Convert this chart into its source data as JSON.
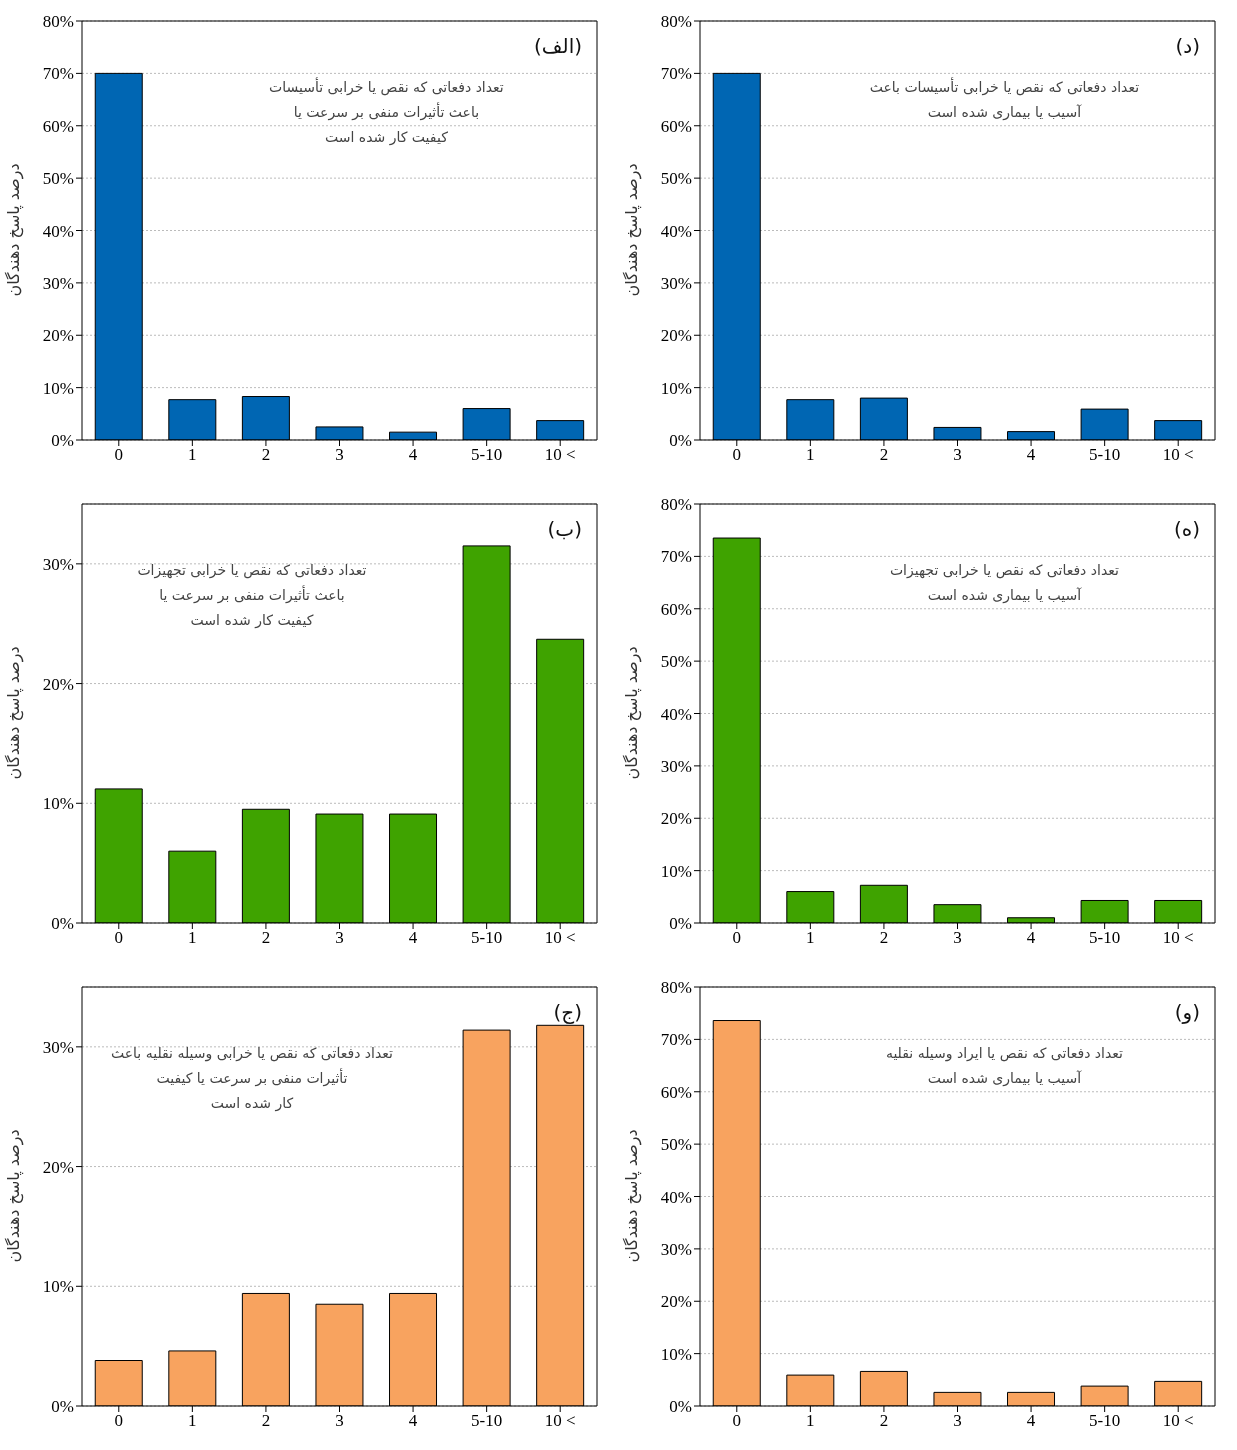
{
  "chart_data": [
    {
      "type": "bar",
      "categories": [
        "0",
        "1",
        "2",
        "3",
        "4",
        "5-10",
        "10 <"
      ],
      "values": [
        70,
        7.7,
        8.3,
        2.5,
        1.5,
        6.0,
        3.7
      ],
      "color": "#0066b3",
      "ylabel": "درصد پاسخ دهندگان",
      "ylim": [
        0,
        80
      ],
      "yticks": [
        {
          "value": 0,
          "label": "0%"
        },
        {
          "value": 10,
          "label": "10%"
        },
        {
          "value": 20,
          "label": "20%"
        },
        {
          "value": 30,
          "label": "30%"
        },
        {
          "value": 40,
          "label": "40%"
        },
        {
          "value": 50,
          "label": "50%"
        },
        {
          "value": 60,
          "label": "60%"
        },
        {
          "value": 70,
          "label": "70%"
        },
        {
          "value": 80,
          "label": "80%"
        }
      ],
      "grid": "y",
      "annotations": [
        "(الف)",
        "تعداد دفعاتی که نقص یا خرابی تأسیسات\nباعث تأثیرات منفی بر سرعت یا\nکیفیت کار شده است"
      ]
    },
    {
      "type": "bar",
      "categories": [
        "0",
        "1",
        "2",
        "3",
        "4",
        "5-10",
        "10 <"
      ],
      "values": [
        70,
        7.7,
        8.0,
        2.4,
        1.6,
        5.9,
        3.7
      ],
      "color": "#0066b3",
      "ylabel": "درصد پاسخ دهندگان",
      "ylim": [
        0,
        80
      ],
      "yticks": [
        {
          "value": 0,
          "label": "0%"
        },
        {
          "value": 10,
          "label": "10%"
        },
        {
          "value": 20,
          "label": "20%"
        },
        {
          "value": 30,
          "label": "30%"
        },
        {
          "value": 40,
          "label": "40%"
        },
        {
          "value": 50,
          "label": "50%"
        },
        {
          "value": 60,
          "label": "60%"
        },
        {
          "value": 70,
          "label": "70%"
        },
        {
          "value": 80,
          "label": "80%"
        }
      ],
      "grid": "y",
      "annotations": [
        "(د)",
        "تعداد دفعاتی که نقص یا خرابی تأسیسات باعث\nآسیب یا بیماری شده است"
      ]
    },
    {
      "type": "bar",
      "categories": [
        "0",
        "1",
        "2",
        "3",
        "4",
        "5-10",
        "10 <"
      ],
      "values": [
        11.2,
        6.0,
        9.5,
        9.1,
        9.1,
        31.5,
        23.7
      ],
      "color": "#3fa300",
      "ylabel": "درصد پاسخ دهندگان",
      "ylim": [
        0,
        35
      ],
      "yticks": [
        {
          "value": 0,
          "label": "0%"
        },
        {
          "value": 10,
          "label": "10%"
        },
        {
          "value": 20,
          "label": "20%"
        },
        {
          "value": 30,
          "label": "30%"
        }
      ],
      "grid": "y",
      "annotations": [
        "(ب)",
        "تعداد دفعاتی که نقص یا خرابی تجهیزات\nباعث تأثیرات منفی بر سرعت یا\nکیفیت کار شده است"
      ]
    },
    {
      "type": "bar",
      "categories": [
        "0",
        "1",
        "2",
        "3",
        "4",
        "5-10",
        "10 <"
      ],
      "values": [
        73.5,
        6.0,
        7.2,
        3.5,
        1.0,
        4.3,
        4.3
      ],
      "color": "#3fa300",
      "ylabel": "درصد پاسخ دهندگان",
      "ylim": [
        0,
        80
      ],
      "yticks": [
        {
          "value": 0,
          "label": "0%"
        },
        {
          "value": 10,
          "label": "10%"
        },
        {
          "value": 20,
          "label": "20%"
        },
        {
          "value": 30,
          "label": "30%"
        },
        {
          "value": 40,
          "label": "40%"
        },
        {
          "value": 50,
          "label": "50%"
        },
        {
          "value": 60,
          "label": "60%"
        },
        {
          "value": 70,
          "label": "70%"
        },
        {
          "value": 80,
          "label": "80%"
        }
      ],
      "grid": "y",
      "annotations": [
        "(ه)",
        "تعداد دفعاتی که نقص یا خرابی تجهیزات\nآسیب یا بیماری شده است"
      ]
    },
    {
      "type": "bar",
      "categories": [
        "0",
        "1",
        "2",
        "3",
        "4",
        "5-10",
        "10 <"
      ],
      "values": [
        3.8,
        4.6,
        9.4,
        8.5,
        9.4,
        31.4,
        31.8
      ],
      "color": "#f8a35f",
      "ylabel": "درصد پاسخ دهندگان",
      "ylim": [
        0,
        35
      ],
      "yticks": [
        {
          "value": 0,
          "label": "0%"
        },
        {
          "value": 10,
          "label": "10%"
        },
        {
          "value": 20,
          "label": "20%"
        },
        {
          "value": 30,
          "label": "30%"
        }
      ],
      "grid": "y",
      "annotations": [
        "(ج)",
        "تعداد دفعاتی که نقص یا خرابی وسیله نقلیه باعث\nتأثیرات منفی بر سرعت یا کیفیت\nکار شده است"
      ]
    },
    {
      "type": "bar",
      "categories": [
        "0",
        "1",
        "2",
        "3",
        "4",
        "5-10",
        "10 <"
      ],
      "values": [
        73.6,
        5.9,
        6.6,
        2.6,
        2.6,
        3.8,
        4.7
      ],
      "color": "#f8a35f",
      "ylabel": "درصد پاسخ دهندگان",
      "ylim": [
        0,
        80
      ],
      "yticks": [
        {
          "value": 0,
          "label": "0%"
        },
        {
          "value": 10,
          "label": "10%"
        },
        {
          "value": 20,
          "label": "20%"
        },
        {
          "value": 30,
          "label": "30%"
        },
        {
          "value": 40,
          "label": "40%"
        },
        {
          "value": 50,
          "label": "50%"
        },
        {
          "value": 60,
          "label": "60%"
        },
        {
          "value": 70,
          "label": "70%"
        },
        {
          "value": 80,
          "label": "80%"
        }
      ],
      "grid": "y",
      "annotations": [
        "(و)",
        "تعداد دفعاتی که نقص یا ایراد وسیله نقلیه\nآسیب یا بیماری شده است"
      ]
    }
  ]
}
